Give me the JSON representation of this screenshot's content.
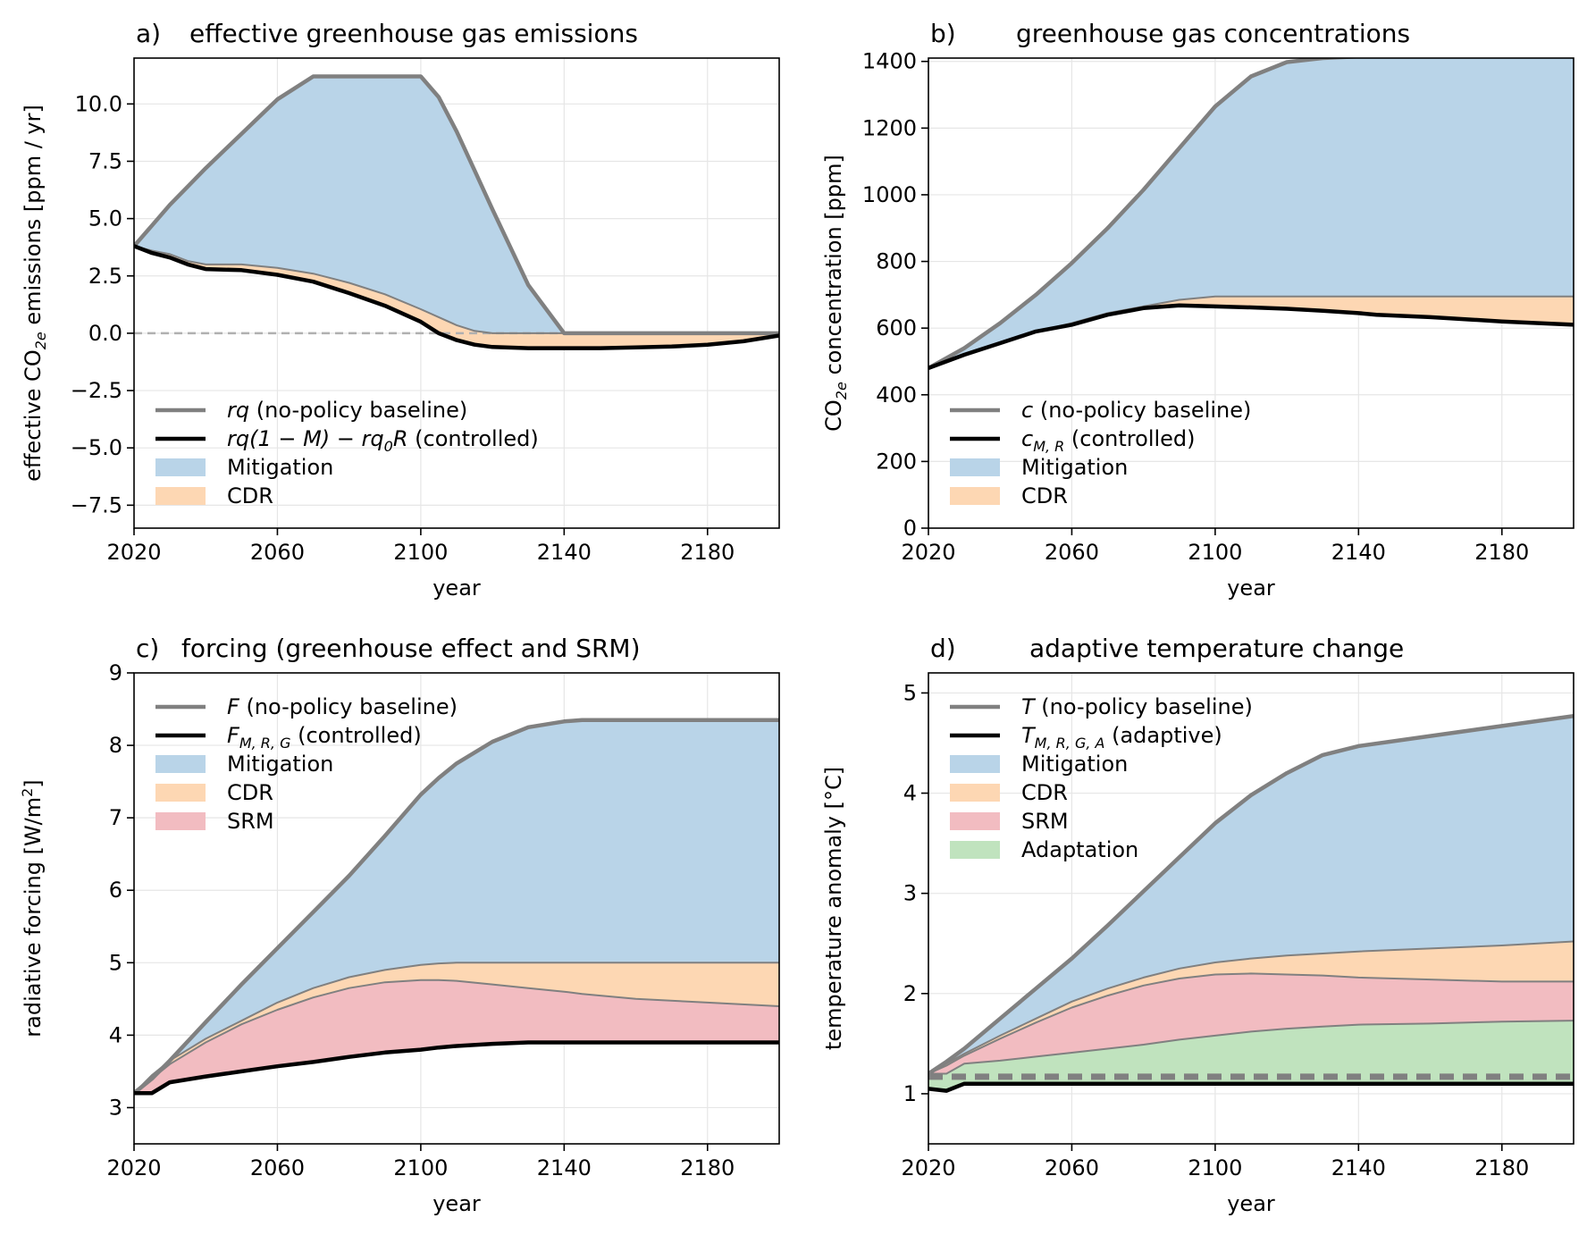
{
  "colors": {
    "mitigation": "#b9d4e8",
    "cdr": "#fdd7b3",
    "srm": "#f2bcc1",
    "adaptation": "#c0e3be",
    "baseline": "#808080",
    "controlled": "#000000",
    "grid": "#e6e6e6",
    "zero_line": "#b0b0b0"
  },
  "chart_data": [
    {
      "type": "area",
      "panel_label": "a)",
      "title": "effective greenhouse gas emissions",
      "xlabel": "year",
      "ylabel": "effective CO$_{2e}$ emissions [ppm / yr]",
      "ylabel_parts": [
        "effective CO",
        "2e",
        " emissions [ppm / yr]"
      ],
      "xlim": [
        2020,
        2200
      ],
      "ylim": [
        -8.5,
        12
      ],
      "xticks": [
        2020,
        2060,
        2100,
        2140,
        2180
      ],
      "yticks": [
        -7.5,
        -5.0,
        -2.5,
        0.0,
        2.5,
        5.0,
        7.5,
        10.0
      ],
      "ytick_labels": [
        "−7.5",
        "−5.0",
        "−2.5",
        "0.0",
        "2.5",
        "5.0",
        "7.5",
        "10.0"
      ],
      "grid": true,
      "zero_line": true,
      "legend_position": "lower-left",
      "x": [
        2020,
        2025,
        2030,
        2035,
        2040,
        2050,
        2060,
        2070,
        2080,
        2090,
        2100,
        2105,
        2110,
        2115,
        2120,
        2130,
        2140,
        2150,
        2160,
        2170,
        2180,
        2190,
        2200
      ],
      "series": [
        {
          "name": "rq (no-policy baseline)",
          "role": "baseline",
          "values": [
            3.8,
            4.7,
            5.6,
            6.4,
            7.2,
            8.7,
            10.2,
            11.2,
            11.2,
            11.2,
            11.2,
            10.3,
            8.8,
            7.1,
            5.4,
            2.1,
            0.0,
            0.0,
            0.0,
            0.0,
            0.0,
            0.0,
            0.0
          ]
        },
        {
          "name": "rq(1 − M) − rq₀R (controlled)",
          "role": "controlled",
          "values": [
            3.8,
            3.5,
            3.3,
            3.0,
            2.8,
            2.75,
            2.55,
            2.25,
            1.75,
            1.2,
            0.5,
            0.0,
            -0.3,
            -0.5,
            -0.6,
            -0.65,
            -0.65,
            -0.65,
            -0.62,
            -0.58,
            -0.5,
            -0.35,
            -0.1
          ]
        },
        {
          "name": "rq(1 − M) boundary",
          "role": "boundary",
          "values": [
            3.8,
            3.6,
            3.45,
            3.15,
            3.0,
            3.0,
            2.85,
            2.6,
            2.2,
            1.7,
            1.05,
            0.7,
            0.35,
            0.1,
            0.0,
            0.0,
            0.0,
            0.0,
            0.0,
            0.0,
            0.0,
            0.0,
            0.0
          ]
        }
      ],
      "legend": [
        {
          "kind": "line",
          "role": "baseline",
          "label_math": "rq",
          "label_rest": " (no-policy baseline)"
        },
        {
          "kind": "line",
          "role": "controlled",
          "label_math": "rq(1 − M) − rq",
          "label_math_sub": "0",
          "label_math_after": "R",
          "label_rest": " (controlled)"
        },
        {
          "kind": "patch",
          "role": "mitigation",
          "label_rest": "Mitigation"
        },
        {
          "kind": "patch",
          "role": "cdr",
          "label_rest": "CDR"
        }
      ]
    },
    {
      "type": "area",
      "panel_label": "b)",
      "title": "greenhouse gas concentrations",
      "xlabel": "year",
      "ylabel_parts": [
        "CO",
        "2e",
        " concentration [ppm]"
      ],
      "xlim": [
        2020,
        2200
      ],
      "ylim": [
        0,
        1410
      ],
      "xticks": [
        2020,
        2060,
        2100,
        2140,
        2180
      ],
      "yticks": [
        0,
        200,
        400,
        600,
        800,
        1000,
        1200,
        1400
      ],
      "ytick_labels": [
        "0",
        "200",
        "400",
        "600",
        "800",
        "1000",
        "1200",
        "1400"
      ],
      "grid": true,
      "legend_position": "lower-left",
      "x": [
        2020,
        2030,
        2040,
        2050,
        2060,
        2070,
        2080,
        2090,
        2100,
        2110,
        2120,
        2130,
        2140,
        2145,
        2160,
        2180,
        2200
      ],
      "series": [
        {
          "name": "c (no-policy baseline)",
          "role": "baseline",
          "values": [
            480,
            540,
            615,
            700,
            795,
            900,
            1015,
            1140,
            1265,
            1355,
            1398,
            1410,
            1415,
            1415,
            1415,
            1415,
            1415
          ]
        },
        {
          "name": "c_{M,R} (controlled)",
          "role": "controlled",
          "values": [
            480,
            520,
            555,
            590,
            610,
            640,
            660,
            668,
            665,
            662,
            658,
            652,
            645,
            640,
            633,
            620,
            610
          ]
        },
        {
          "name": "mitigation boundary",
          "role": "boundary",
          "values": [
            480,
            520,
            555,
            590,
            615,
            645,
            665,
            685,
            695,
            695,
            695,
            695,
            695,
            695,
            695,
            695,
            695
          ]
        }
      ],
      "legend": [
        {
          "kind": "line",
          "role": "baseline",
          "label_math": "c",
          "label_rest": " (no-policy baseline)"
        },
        {
          "kind": "line",
          "role": "controlled",
          "label_math": "c",
          "label_math_sub": "M, R",
          "label_rest": " (controlled)"
        },
        {
          "kind": "patch",
          "role": "mitigation",
          "label_rest": "Mitigation"
        },
        {
          "kind": "patch",
          "role": "cdr",
          "label_rest": "CDR"
        }
      ]
    },
    {
      "type": "area",
      "panel_label": "c)",
      "title": "forcing (greenhouse effect and SRM)",
      "xlabel": "year",
      "ylabel_parts": [
        "radiative forcing [W/m",
        "2",
        "]"
      ],
      "xlim": [
        2020,
        2200
      ],
      "ylim": [
        2.5,
        9
      ],
      "xticks": [
        2020,
        2060,
        2100,
        2140,
        2180
      ],
      "yticks": [
        3,
        4,
        5,
        6,
        7,
        8,
        9
      ],
      "ytick_labels": [
        "3",
        "4",
        "5",
        "6",
        "7",
        "8",
        "9"
      ],
      "grid": true,
      "legend_position": "upper-left",
      "x": [
        2020,
        2025,
        2030,
        2040,
        2050,
        2060,
        2070,
        2080,
        2090,
        2100,
        2105,
        2110,
        2120,
        2130,
        2140,
        2145,
        2160,
        2180,
        2200
      ],
      "series": [
        {
          "name": "F (no-policy baseline)",
          "role": "baseline",
          "values": [
            3.2,
            3.4,
            3.65,
            4.18,
            4.7,
            5.2,
            5.7,
            6.2,
            6.75,
            7.32,
            7.55,
            7.75,
            8.05,
            8.25,
            8.33,
            8.35,
            8.35,
            8.35,
            8.35
          ]
        },
        {
          "name": "mitigation boundary",
          "role": "boundary",
          "values": [
            3.2,
            3.45,
            3.65,
            3.95,
            4.2,
            4.45,
            4.65,
            4.8,
            4.9,
            4.97,
            4.99,
            5.0,
            5.0,
            5.0,
            5.0,
            5.0,
            5.0,
            5.0,
            5.0
          ]
        },
        {
          "name": "CDR boundary",
          "role": "boundary",
          "values": [
            3.2,
            3.4,
            3.6,
            3.9,
            4.15,
            4.35,
            4.52,
            4.65,
            4.73,
            4.76,
            4.76,
            4.75,
            4.7,
            4.65,
            4.6,
            4.57,
            4.5,
            4.45,
            4.4
          ]
        },
        {
          "name": "F_{M,R,G} (controlled)",
          "role": "controlled",
          "values": [
            3.2,
            3.2,
            3.35,
            3.43,
            3.5,
            3.57,
            3.63,
            3.7,
            3.76,
            3.8,
            3.83,
            3.85,
            3.88,
            3.9,
            3.9,
            3.9,
            3.9,
            3.9,
            3.9
          ]
        }
      ],
      "legend": [
        {
          "kind": "line",
          "role": "baseline",
          "label_math": "F",
          "label_rest": " (no-policy baseline)"
        },
        {
          "kind": "line",
          "role": "controlled",
          "label_math": "F",
          "label_math_sub": "M, R, G",
          "label_rest": " (controlled)"
        },
        {
          "kind": "patch",
          "role": "mitigation",
          "label_rest": "Mitigation"
        },
        {
          "kind": "patch",
          "role": "cdr",
          "label_rest": "CDR"
        },
        {
          "kind": "patch",
          "role": "srm",
          "label_rest": "SRM"
        }
      ]
    },
    {
      "type": "area",
      "panel_label": "d)",
      "title": "adaptive temperature change",
      "xlabel": "year",
      "ylabel_parts": [
        "temperature anomaly [°C]"
      ],
      "xlim": [
        2020,
        2200
      ],
      "ylim": [
        0.5,
        5.2
      ],
      "xticks": [
        2020,
        2060,
        2100,
        2140,
        2180
      ],
      "yticks": [
        1,
        2,
        3,
        4,
        5
      ],
      "ytick_labels": [
        "1",
        "2",
        "3",
        "4",
        "5"
      ],
      "grid": true,
      "dashed_threshold": 1.17,
      "legend_position": "upper-left",
      "x": [
        2020,
        2025,
        2030,
        2040,
        2050,
        2060,
        2070,
        2080,
        2090,
        2100,
        2110,
        2120,
        2130,
        2140,
        2160,
        2180,
        2200
      ],
      "series": [
        {
          "name": "T (no-policy baseline)",
          "role": "baseline",
          "values": [
            1.2,
            1.32,
            1.45,
            1.75,
            2.05,
            2.35,
            2.68,
            3.02,
            3.36,
            3.7,
            3.98,
            4.2,
            4.38,
            4.47,
            4.57,
            4.67,
            4.77
          ]
        },
        {
          "name": "mitigation boundary",
          "role": "boundary",
          "values": [
            1.2,
            1.3,
            1.4,
            1.58,
            1.75,
            1.92,
            2.05,
            2.16,
            2.25,
            2.31,
            2.35,
            2.38,
            2.4,
            2.42,
            2.45,
            2.48,
            2.52
          ]
        },
        {
          "name": "CDR boundary",
          "role": "boundary",
          "values": [
            1.2,
            1.28,
            1.38,
            1.55,
            1.71,
            1.86,
            1.98,
            2.08,
            2.15,
            2.19,
            2.2,
            2.19,
            2.18,
            2.16,
            2.14,
            2.12,
            2.12
          ]
        },
        {
          "name": "SRM boundary",
          "role": "boundary",
          "values": [
            1.2,
            1.2,
            1.3,
            1.33,
            1.37,
            1.41,
            1.45,
            1.49,
            1.54,
            1.58,
            1.62,
            1.65,
            1.67,
            1.69,
            1.7,
            1.72,
            1.73
          ]
        },
        {
          "name": "T_{M,R,G,A} (adaptive)",
          "role": "controlled",
          "values": [
            1.05,
            1.03,
            1.1,
            1.1,
            1.1,
            1.1,
            1.1,
            1.1,
            1.1,
            1.1,
            1.1,
            1.1,
            1.1,
            1.1,
            1.1,
            1.1,
            1.1
          ]
        }
      ],
      "legend": [
        {
          "kind": "line",
          "role": "baseline",
          "label_math": "T",
          "label_rest": " (no-policy baseline)"
        },
        {
          "kind": "line",
          "role": "controlled",
          "label_math": "T",
          "label_math_sub": "M, R, G, A",
          "label_rest": " (adaptive)"
        },
        {
          "kind": "patch",
          "role": "mitigation",
          "label_rest": "Mitigation"
        },
        {
          "kind": "patch",
          "role": "cdr",
          "label_rest": "CDR"
        },
        {
          "kind": "patch",
          "role": "srm",
          "label_rest": "SRM"
        },
        {
          "kind": "patch",
          "role": "adaptation",
          "label_rest": "Adaptation"
        }
      ]
    }
  ]
}
